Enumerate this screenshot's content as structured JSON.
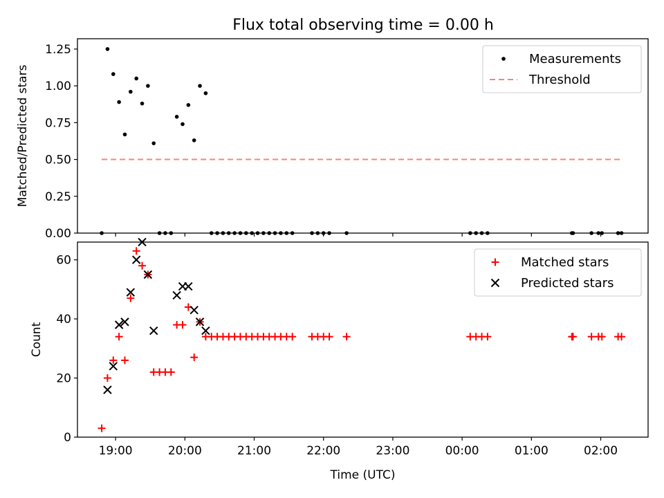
{
  "figure_title": "Flux total observing time = 0.00 h",
  "colors": {
    "measurements": "#000000",
    "threshold": "#ff7f7f",
    "matched": "#ff0000",
    "predicted": "#000000"
  },
  "chart_data": [
    {
      "type": "scatter",
      "panel": "top",
      "title": "Flux total observing time = 0.00 h",
      "xlabel": "",
      "ylabel": "Matched/Predicted stars",
      "xlim": [
        "18:27",
        "02:41"
      ],
      "ylim": [
        0,
        1.32
      ],
      "yticks": [
        0,
        0.25,
        0.5,
        0.75,
        1.0,
        1.25
      ],
      "ytick_labels": [
        "0.00",
        "0.25",
        "0.50",
        "0.75",
        "1.00",
        "1.25"
      ],
      "xticks": [
        "19:00",
        "20:00",
        "21:00",
        "22:00",
        "23:00",
        "00:00",
        "01:00",
        "02:00"
      ],
      "legend": {
        "position": "top-right",
        "entries": [
          "Measurements",
          "Threshold"
        ]
      },
      "series": [
        {
          "name": "Measurements",
          "marker": "dot",
          "x": [
            "18:48",
            "18:53",
            "18:58",
            "19:03",
            "19:08",
            "19:13",
            "19:18",
            "19:23",
            "19:28",
            "19:33",
            "19:38",
            "19:43",
            "19:48",
            "19:53",
            "19:58",
            "20:03",
            "20:08",
            "20:13",
            "20:18",
            "20:23",
            "20:28",
            "20:33",
            "20:38",
            "20:43",
            "20:48",
            "20:53",
            "20:58",
            "21:03",
            "21:08",
            "21:13",
            "21:18",
            "21:23",
            "21:28",
            "21:33",
            "21:50",
            "21:55",
            "22:00",
            "22:05",
            "22:20",
            "00:07",
            "00:12",
            "00:17",
            "00:22",
            "01:35",
            "01:36",
            "01:52",
            "01:58",
            "02:01",
            "02:15",
            "02:18"
          ],
          "y": [
            0.0,
            1.25,
            1.08,
            0.89,
            0.67,
            0.96,
            1.05,
            0.88,
            1.0,
            0.61,
            0.0,
            0.0,
            0.0,
            0.79,
            0.74,
            0.87,
            0.63,
            1.0,
            0.95,
            0.0,
            0.0,
            0.0,
            0.0,
            0.0,
            0.0,
            0.0,
            0.0,
            0.0,
            0.0,
            0.0,
            0.0,
            0.0,
            0.0,
            0.0,
            0.0,
            0.0,
            0.0,
            0.0,
            0.0,
            0.0,
            0.0,
            0.0,
            0.0,
            0.0,
            0.0,
            0.0,
            0.0,
            0.0,
            0.0,
            0.0
          ]
        },
        {
          "name": "Threshold",
          "style": "dashed",
          "x": [
            "18:48",
            "02:18"
          ],
          "y": [
            0.5,
            0.5
          ]
        }
      ]
    },
    {
      "type": "scatter",
      "panel": "bottom",
      "xlabel": "Time (UTC)",
      "ylabel": "Count",
      "xlim": [
        "18:27",
        "02:41"
      ],
      "ylim": [
        0,
        66
      ],
      "yticks": [
        0,
        20,
        40,
        60
      ],
      "ytick_labels": [
        "0",
        "20",
        "40",
        "60"
      ],
      "xticks": [
        "19:00",
        "20:00",
        "21:00",
        "22:00",
        "23:00",
        "00:00",
        "01:00",
        "02:00"
      ],
      "xtick_labels": [
        "19:00",
        "20:00",
        "21:00",
        "22:00",
        "23:00",
        "00:00",
        "01:00",
        "02:00"
      ],
      "legend": {
        "position": "top-right",
        "entries": [
          "Matched stars",
          "Predicted stars"
        ]
      },
      "series": [
        {
          "name": "Matched stars",
          "marker": "plus",
          "x": [
            "18:48",
            "18:53",
            "18:58",
            "19:03",
            "19:08",
            "19:13",
            "19:18",
            "19:23",
            "19:28",
            "19:33",
            "19:38",
            "19:43",
            "19:48",
            "19:53",
            "19:58",
            "20:03",
            "20:08",
            "20:13",
            "20:18",
            "20:23",
            "20:28",
            "20:33",
            "20:38",
            "20:43",
            "20:48",
            "20:53",
            "20:58",
            "21:03",
            "21:08",
            "21:13",
            "21:18",
            "21:23",
            "21:28",
            "21:33",
            "21:50",
            "21:55",
            "22:00",
            "22:05",
            "22:20",
            "00:07",
            "00:12",
            "00:17",
            "00:22",
            "01:35",
            "01:36",
            "01:52",
            "01:58",
            "02:01",
            "02:15",
            "02:18"
          ],
          "y": [
            3,
            20,
            26,
            34,
            26,
            47,
            63,
            58,
            55,
            22,
            22,
            22,
            22,
            38,
            38,
            44,
            27,
            39,
            34,
            34,
            34,
            34,
            34,
            34,
            34,
            34,
            34,
            34,
            34,
            34,
            34,
            34,
            34,
            34,
            34,
            34,
            34,
            34,
            34,
            34,
            34,
            34,
            34,
            34,
            34,
            34,
            34,
            34,
            34,
            34
          ]
        },
        {
          "name": "Predicted stars",
          "marker": "x",
          "x": [
            "18:53",
            "18:58",
            "19:03",
            "19:08",
            "19:13",
            "19:18",
            "19:23",
            "19:28",
            "19:33",
            "19:53",
            "19:58",
            "20:03",
            "20:08",
            "20:13",
            "20:18"
          ],
          "y": [
            16,
            24,
            38,
            39,
            49,
            60,
            66,
            55,
            36,
            48,
            51,
            51,
            43,
            39,
            36
          ]
        }
      ]
    }
  ]
}
